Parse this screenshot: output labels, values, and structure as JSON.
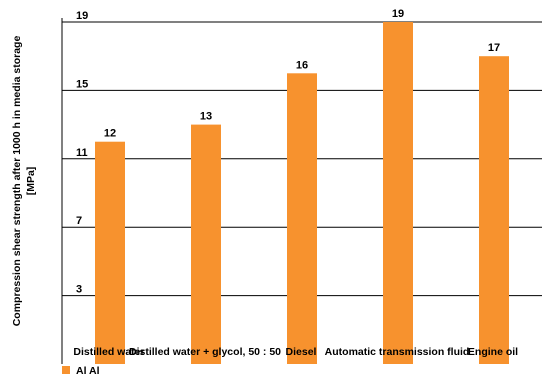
{
  "chart_data": {
    "type": "bar",
    "title": "",
    "xlabel": "",
    "ylabel_lines": [
      "Compression shear strength after 1000 h in media storage",
      "[MPa]"
    ],
    "categories": [
      "Distilled water",
      "Distilled water + glycol, 50 : 50",
      "Diesel",
      "Automatic transmission fluid",
      "Engine oil"
    ],
    "series": [
      {
        "name": "Al Al",
        "values": [
          12,
          13,
          16,
          19,
          17
        ],
        "data_labels": [
          "12",
          "13",
          "16",
          "19",
          "17"
        ]
      }
    ],
    "ylim": [
      -1,
      19
    ],
    "yticks": [
      3,
      7,
      11,
      15,
      19
    ],
    "grid": true,
    "legend_position": "bottom-left",
    "colors": {
      "bar": "#f7922e",
      "grid": "#000000",
      "text": "#000000"
    }
  }
}
